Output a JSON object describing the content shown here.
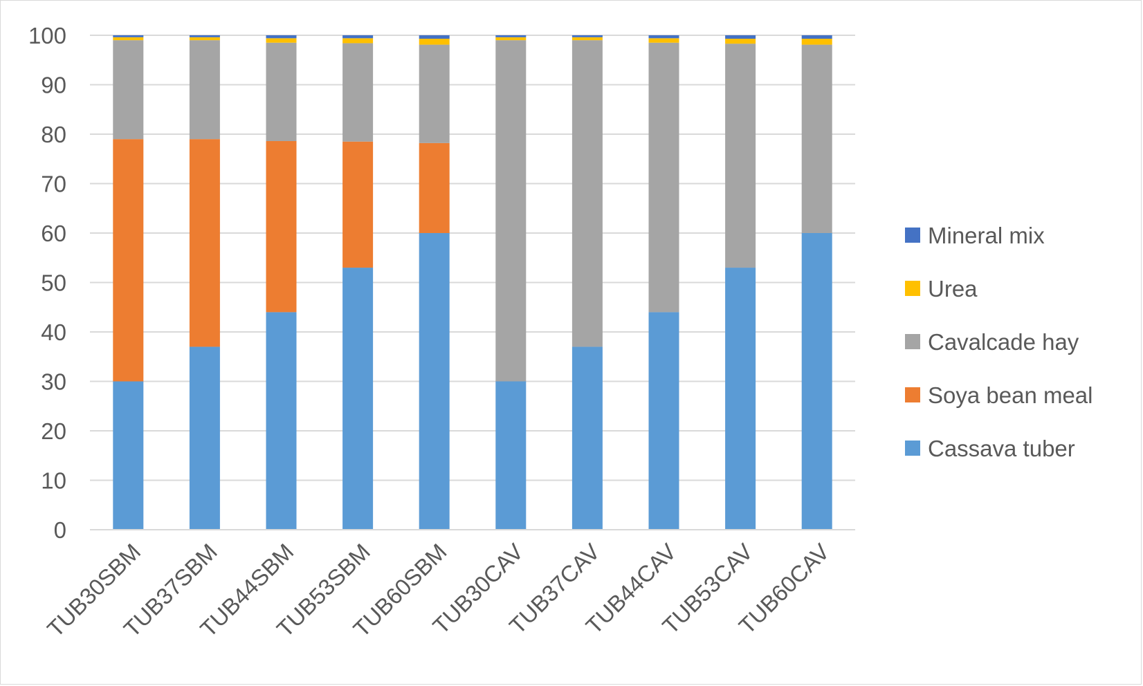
{
  "chart_data": {
    "type": "bar",
    "stacked": true,
    "title": "",
    "xlabel": "",
    "ylabel": "",
    "ylim": [
      0,
      100
    ],
    "yticks": [
      0,
      10,
      20,
      30,
      40,
      50,
      60,
      70,
      80,
      90,
      100
    ],
    "grid": true,
    "legend_position": "right",
    "categories": [
      "TUB30SBM",
      "TUB37SBM",
      "TUB44SBM",
      "TUB53SBM",
      "TUB60SBM",
      "TUB30CAV",
      "TUB37CAV",
      "TUB44CAV",
      "TUB53CAV",
      "TUB60CAV"
    ],
    "series": [
      {
        "name": "Cassava tuber",
        "color": "#5b9bd5",
        "values": [
          30,
          37,
          44,
          53,
          60,
          30,
          37,
          44,
          53,
          60
        ]
      },
      {
        "name": "Soya bean meal",
        "color": "#ed7d31",
        "values": [
          49,
          42,
          34.6,
          25.5,
          18.2,
          0,
          0,
          0,
          0,
          0
        ]
      },
      {
        "name": "Cavalcade hay",
        "color": "#a5a5a5",
        "values": [
          20,
          20,
          19.9,
          19.9,
          19.9,
          69,
          62,
          54.5,
          45.3,
          38.1
        ]
      },
      {
        "name": "Urea",
        "color": "#ffc000",
        "values": [
          0.6,
          0.6,
          0.9,
          1.0,
          1.2,
          0.6,
          0.6,
          0.9,
          1.0,
          1.2
        ]
      },
      {
        "name": "Mineral mix",
        "color": "#4472c4",
        "values": [
          0.4,
          0.4,
          0.6,
          0.6,
          0.7,
          0.4,
          0.4,
          0.6,
          0.7,
          0.7
        ]
      }
    ]
  }
}
